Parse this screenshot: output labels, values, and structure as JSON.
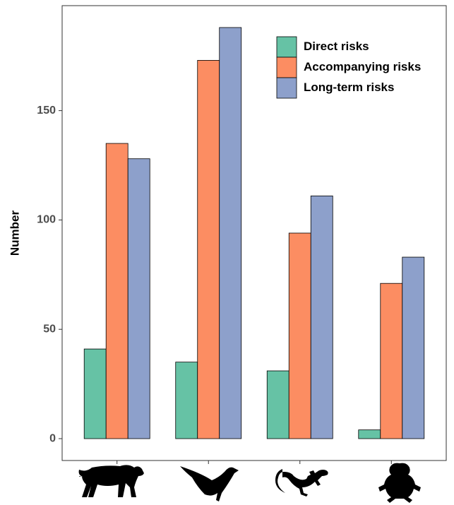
{
  "chart_data": {
    "type": "bar",
    "y_label": "Number",
    "categories": [
      null,
      null,
      null,
      null
    ],
    "series": [
      {
        "name": "Direct risks",
        "color": "#66c2a5",
        "values": [
          41,
          35,
          31,
          4
        ]
      },
      {
        "name": "Accompanying risks",
        "color": "#fc8d62",
        "values": [
          135,
          173,
          94,
          71
        ]
      },
      {
        "name": "Long-term risks",
        "color": "#8da0cb",
        "values": [
          128,
          188,
          111,
          83
        ]
      }
    ],
    "ylim": [
      -10,
      198
    ],
    "yticks": [
      0,
      50,
      100,
      150
    ],
    "grid": false,
    "legend": "top-right"
  }
}
